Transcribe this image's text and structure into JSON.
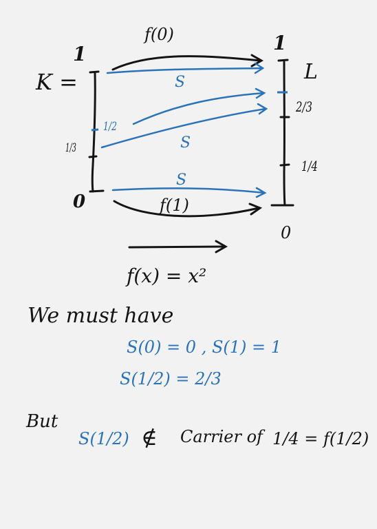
{
  "colors": {
    "ink": "#141414",
    "blue": "#2a73b8",
    "paper": "#f2f2f2"
  },
  "diagram": {
    "domain_label": "K =",
    "codomain_label": "L",
    "left_top": "1",
    "left_bottom": "0",
    "left_mid": "1/3",
    "left_half": "1/2",
    "right_top": "1",
    "right_bottom": "0",
    "right_two_thirds": "2/3",
    "right_quarter": "1/4",
    "arrow_top": "f(0)",
    "arrow_bottom": "f(1)",
    "s_labels": [
      "S",
      "S",
      "S"
    ],
    "function_def": "f(x) = x²"
  },
  "notes": {
    "line1": "We must have",
    "line2": "S(0) = 0 ,  S(1) = 1",
    "line3": "S(1/2) = 2/3",
    "but": "But",
    "conclusion_left": "S(1/2)",
    "not_in": "∉",
    "conclusion_mid": "Carrier of",
    "conclusion_right": "1/4 = f(1/2)"
  }
}
